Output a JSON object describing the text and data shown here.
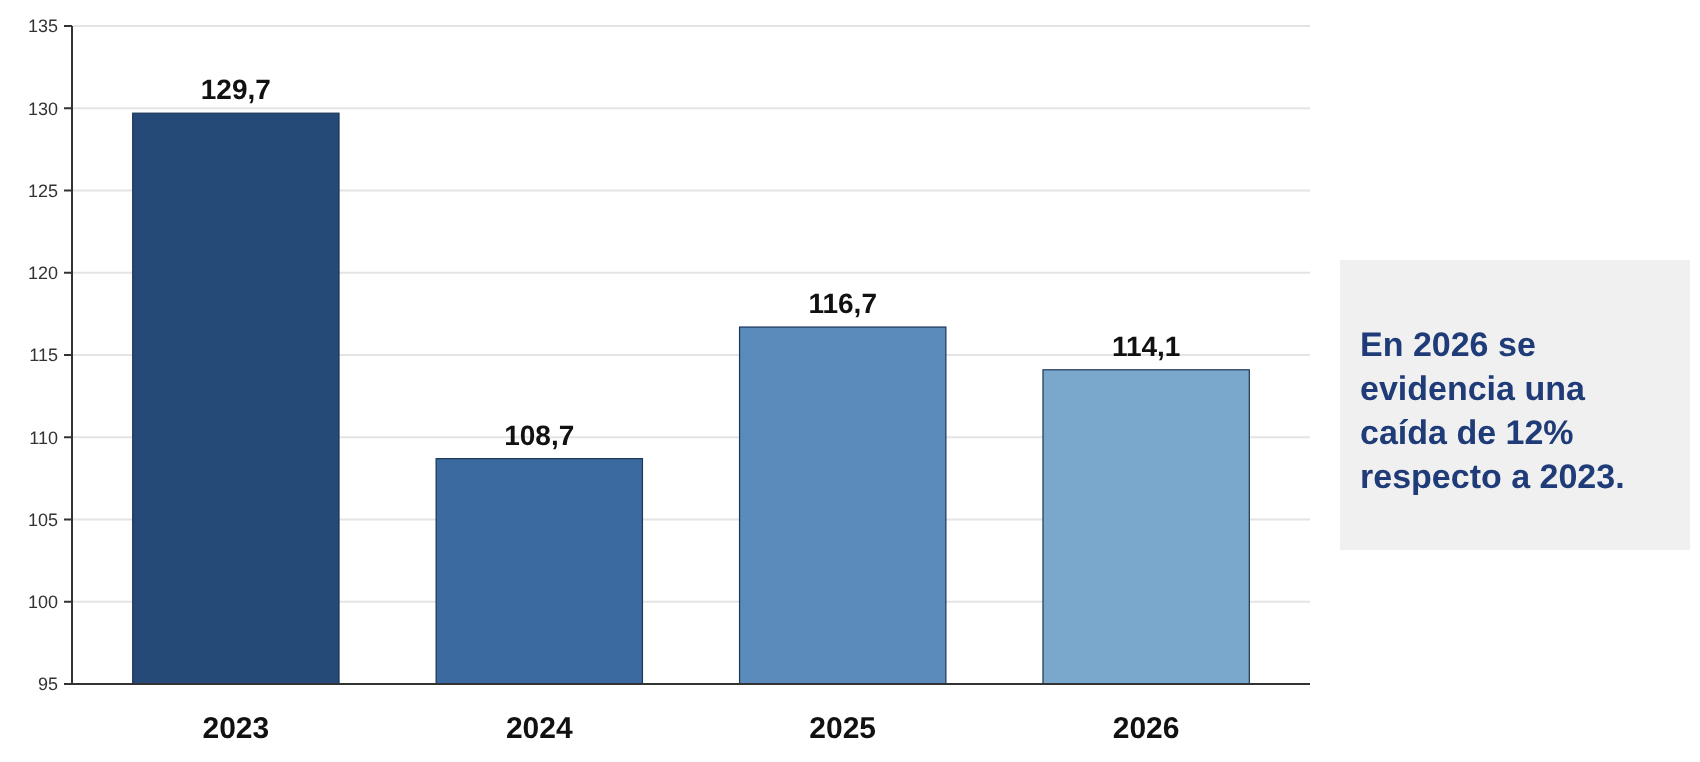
{
  "chart_data": {
    "type": "bar",
    "categories": [
      "2023",
      "2024",
      "2025",
      "2026"
    ],
    "values": [
      129.7,
      108.7,
      116.7,
      114.1
    ],
    "colors": [
      "#264a78",
      "#3a6aa0",
      "#5a8bbb",
      "#7aa8cc"
    ],
    "value_labels": [
      "129,7",
      "108,7",
      "116,7",
      "114,1"
    ],
    "ylim": [
      95,
      135
    ],
    "yticks": [
      95,
      100,
      105,
      110,
      115,
      120,
      125,
      130,
      135
    ],
    "grid": "y",
    "annotations": [
      "En 2026 se evidencia una caída de 12% respecto a 2023."
    ]
  }
}
